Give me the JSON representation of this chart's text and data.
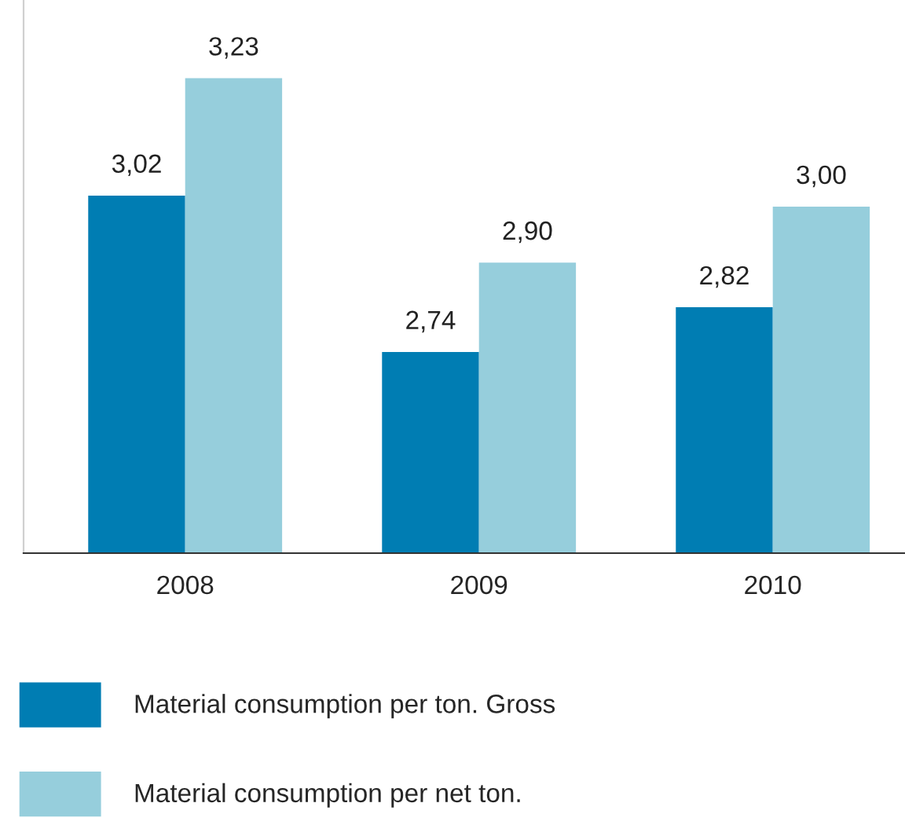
{
  "chart_data": {
    "type": "bar",
    "categories": [
      "2008",
      "2009",
      "2010"
    ],
    "series": [
      {
        "name": "Material consumption per ton. Gross",
        "color": "#007db3",
        "values": [
          3.02,
          2.74,
          2.82
        ],
        "value_labels": [
          "3,02",
          "2,74",
          "2,82"
        ]
      },
      {
        "name": "Material consumption per net ton.",
        "color": "#96cedc",
        "values": [
          3.23,
          2.9,
          3.0
        ],
        "value_labels": [
          "3,23",
          "2,90",
          "3,00"
        ]
      }
    ],
    "ylim": [
      2.38,
      3.37
    ],
    "tick_labels": "x",
    "grid": false,
    "legend": "bottom left"
  }
}
